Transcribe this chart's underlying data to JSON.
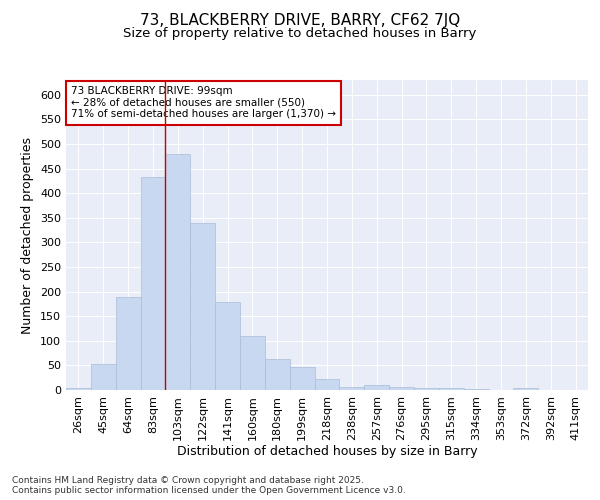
{
  "title1": "73, BLACKBERRY DRIVE, BARRY, CF62 7JQ",
  "title2": "Size of property relative to detached houses in Barry",
  "xlabel": "Distribution of detached houses by size in Barry",
  "ylabel": "Number of detached properties",
  "categories": [
    "26sqm",
    "45sqm",
    "64sqm",
    "83sqm",
    "103sqm",
    "122sqm",
    "141sqm",
    "160sqm",
    "180sqm",
    "199sqm",
    "218sqm",
    "238sqm",
    "257sqm",
    "276sqm",
    "295sqm",
    "315sqm",
    "334sqm",
    "353sqm",
    "372sqm",
    "392sqm",
    "411sqm"
  ],
  "values": [
    5,
    52,
    190,
    432,
    480,
    340,
    178,
    110,
    62,
    47,
    22,
    7,
    10,
    7,
    5,
    5,
    3,
    1,
    5,
    1,
    1
  ],
  "bar_color": "#c8d8f0",
  "bar_edge_color": "#aabcd8",
  "vline_index": 4,
  "vline_color": "#cc0000",
  "annotation_text": "73 BLACKBERRY DRIVE: 99sqm\n← 28% of detached houses are smaller (550)\n71% of semi-detached houses are larger (1,370) →",
  "annotation_box_color": "white",
  "annotation_box_edge": "#cc0000",
  "ylim": [
    0,
    630
  ],
  "yticks": [
    0,
    50,
    100,
    150,
    200,
    250,
    300,
    350,
    400,
    450,
    500,
    550,
    600
  ],
  "background_color": "#e8edf8",
  "footer": "Contains HM Land Registry data © Crown copyright and database right 2025.\nContains public sector information licensed under the Open Government Licence v3.0.",
  "title_fontsize": 11,
  "subtitle_fontsize": 9.5,
  "axis_label_fontsize": 9,
  "tick_fontsize": 8,
  "footer_fontsize": 6.5
}
